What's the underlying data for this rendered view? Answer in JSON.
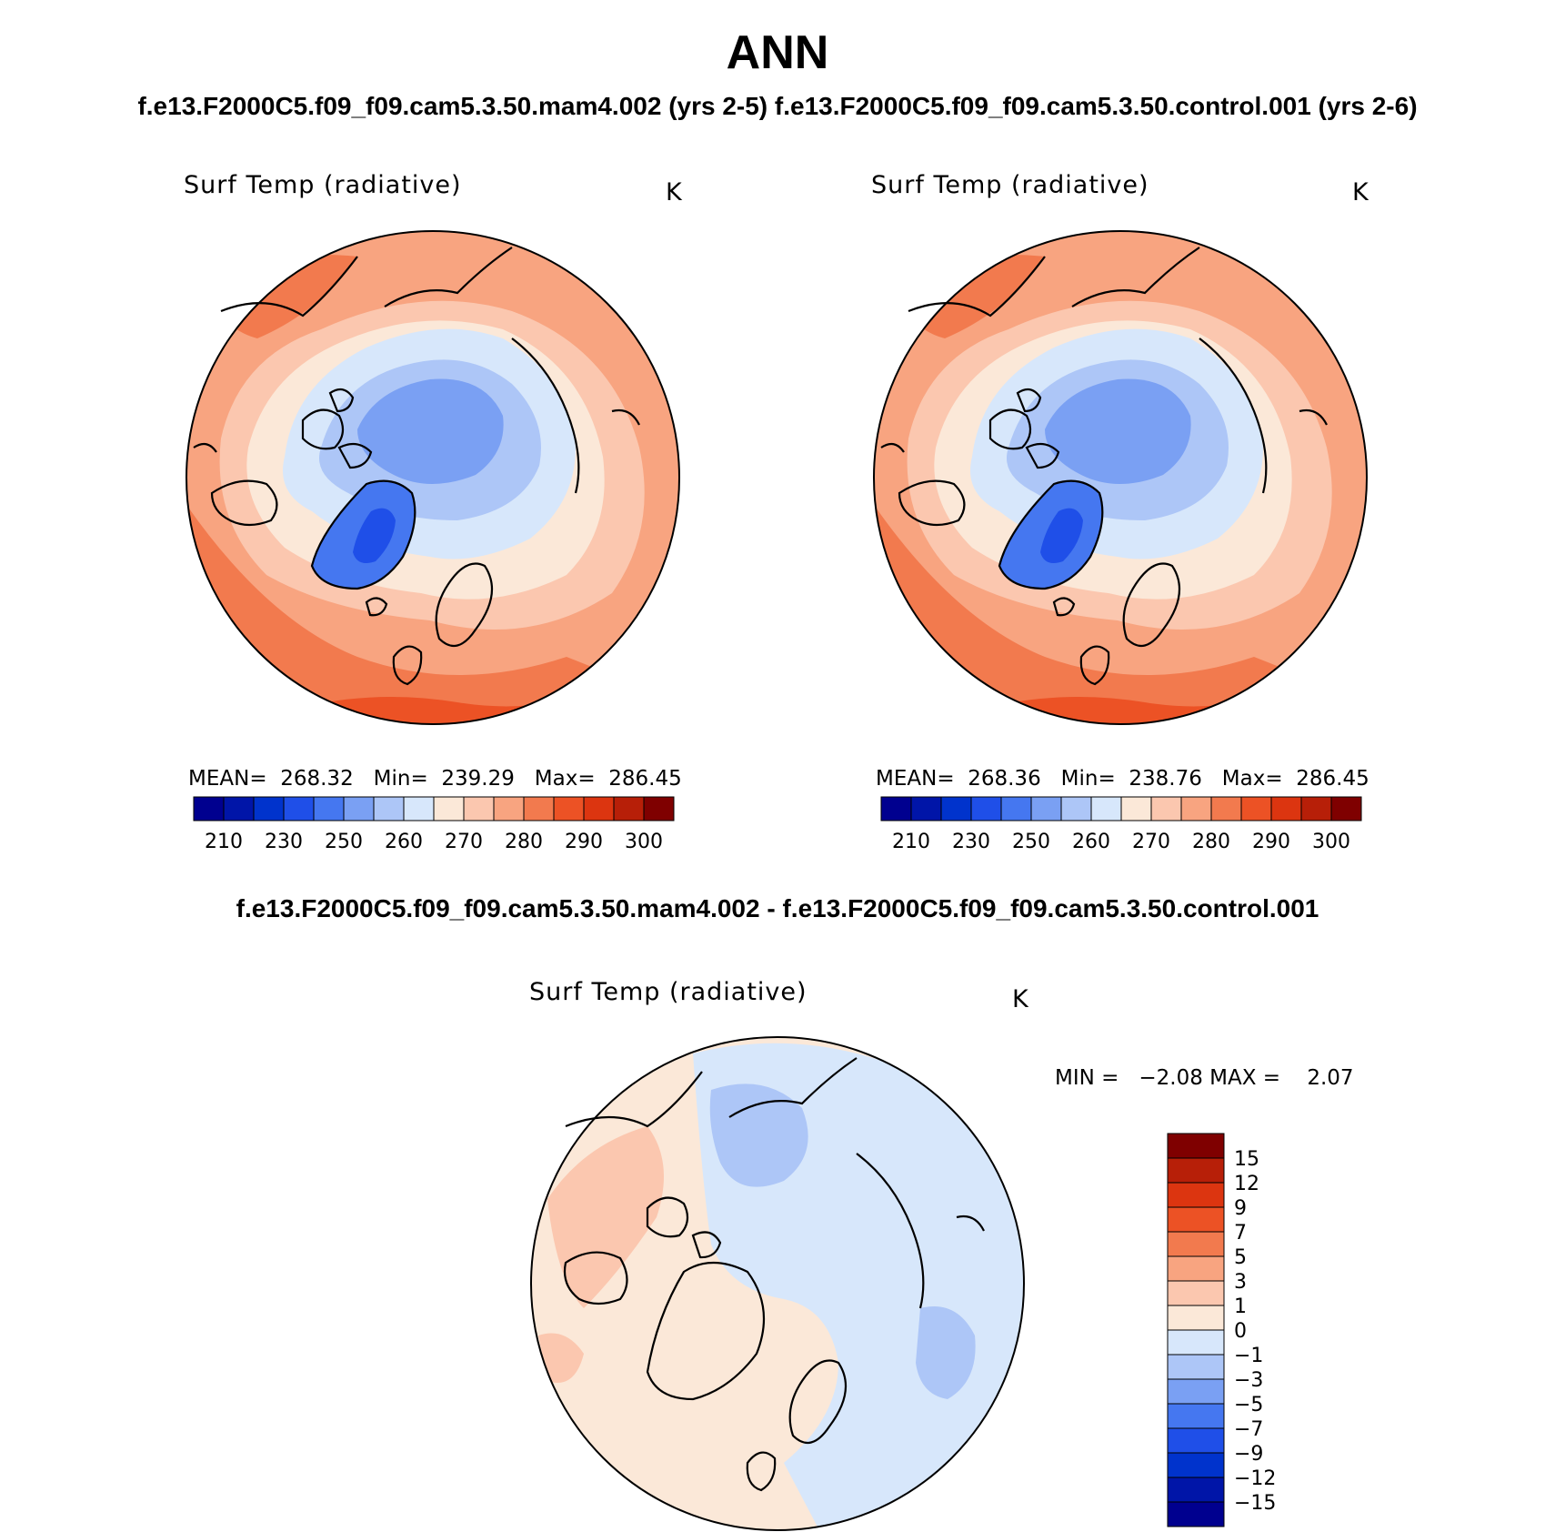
{
  "header": {
    "title": "ANN",
    "subtitle_left": "f.e13.F2000C5.f09_f09.cam5.3.50.mam4.002 (yrs 2-5)",
    "subtitle_right": "f.e13.F2000C5.f09_f09.cam5.3.50.control.001 (yrs 2-6)"
  },
  "panels": [
    {
      "variable": "Surf Temp (radiative)",
      "units": "K",
      "mean_label": "MEAN=",
      "mean": "268.32",
      "min_label": "Min=",
      "min": "239.29",
      "max_label": "Max=",
      "max": "286.45"
    },
    {
      "variable": "Surf Temp (radiative)",
      "units": "K",
      "mean_label": "MEAN=",
      "mean": "268.36",
      "min_label": "Min=",
      "min": "238.76",
      "max_label": "Max=",
      "max": "286.45"
    }
  ],
  "colorbar_top": {
    "tick_labels": [
      "210",
      "230",
      "250",
      "260",
      "270",
      "280",
      "290",
      "300"
    ],
    "colors": [
      "#00008f",
      "#0015a8",
      "#0033cc",
      "#1f4fe8",
      "#4577f0",
      "#7aa0f3",
      "#adc6f7",
      "#d7e7fb",
      "#fbe8d8",
      "#fbc7af",
      "#f8a480",
      "#f27a4e",
      "#ec5225",
      "#dc3510",
      "#b71f08",
      "#7f0000"
    ]
  },
  "difference": {
    "title": "f.e13.F2000C5.f09_f09.cam5.3.50.mam4.002 - f.e13.F2000C5.f09_f09.cam5.3.50.control.001",
    "variable": "Surf Temp (radiative)",
    "units": "K",
    "min_label": "MIN =",
    "min": "−2.08",
    "max_label": "MAX =",
    "max": "2.07",
    "colorbar": {
      "tick_labels": [
        "15",
        "12",
        "9",
        "7",
        "5",
        "3",
        "1",
        "0",
        "−1",
        "−3",
        "−5",
        "−7",
        "−9",
        "−12",
        "−15"
      ],
      "colors": [
        "#7f0000",
        "#b71f08",
        "#dc3510",
        "#ec5225",
        "#f27a4e",
        "#f8a480",
        "#fbc7af",
        "#fbe8d8",
        "#d7e7fb",
        "#adc6f7",
        "#7aa0f3",
        "#4577f0",
        "#1f4fe8",
        "#0033cc",
        "#0015a8",
        "#00008f"
      ]
    }
  }
}
